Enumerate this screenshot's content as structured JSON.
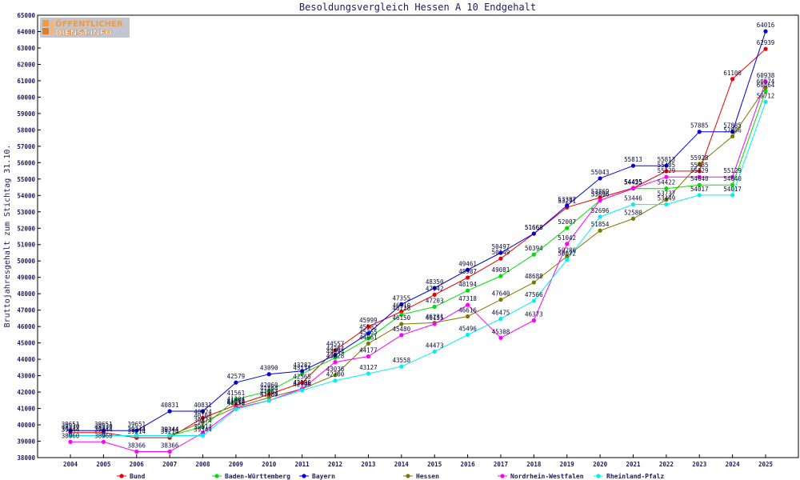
{
  "logo": {
    "line1": "ÖFFENTLICHER",
    "line2": "DIENST.INFO"
  },
  "chart_data": {
    "type": "line",
    "title": "Besoldungsvergleich Hessen A 10 Endgehalt",
    "xlabel": "",
    "ylabel": "Bruttojahresgehalt zum Stichtag 31.10.",
    "x": [
      2004,
      2005,
      2006,
      2007,
      2008,
      2009,
      2010,
      2011,
      2012,
      2013,
      2014,
      2015,
      2016,
      2017,
      2018,
      2019,
      2020,
      2021,
      2022,
      2023,
      2024,
      2025
    ],
    "ylim": [
      38000,
      65000
    ],
    "yticks": [
      38000,
      39000,
      40000,
      41000,
      42000,
      43000,
      44000,
      45000,
      46000,
      47000,
      48000,
      49000,
      50000,
      51000,
      52000,
      53000,
      54000,
      55000,
      56000,
      57000,
      58000,
      59000,
      60000,
      61000,
      62000,
      63000,
      64000,
      65000
    ],
    "grid": false,
    "legend": "bottom",
    "data_labels": true,
    "series": [
      {
        "name": "Bund",
        "color": "#ee0000",
        "values": [
          39530,
          39530,
          39214,
          39214,
          40424,
          41204,
          41863,
          42565,
          44557,
          45999,
          46910,
          47942,
          48987,
          50149,
          51668,
          53271,
          53869,
          54455,
          55485,
          55485,
          61106,
          62939
        ]
      },
      {
        "name": "Baden-Württemberg",
        "color": "#00e000",
        "values": [
          39344,
          39344,
          39344,
          39344,
          39874,
          41561,
          42060,
          43111,
          44094,
          45265,
          46728,
          47203,
          48194,
          49081,
          50394,
          52007,
          53696,
          54425,
          54422,
          54640,
          54640,
          60364
        ]
      },
      {
        "name": "Bayern",
        "color": "#0000e0",
        "values": [
          39651,
          39651,
          39651,
          40831,
          40831,
          42579,
          43090,
          43282,
          44264,
          45582,
          47355,
          48350,
          49461,
          50497,
          51668,
          53387,
          55043,
          55813,
          55813,
          57885,
          57885,
          64016
        ]
      },
      {
        "name": "Hessen",
        "color": "#7a7a00",
        "values": [
          39344,
          39344,
          39344,
          39344,
          40168,
          41068,
          41667,
          42196,
          43036,
          44961,
          46150,
          46231,
          46616,
          47640,
          48688,
          50286,
          51854,
          52580,
          53737,
          55928,
          57606,
          60574
        ]
      },
      {
        "name": "Nordrhein-Westfalen",
        "color": "#ff00ff",
        "values": [
          38960,
          38960,
          38366,
          38366,
          39514,
          41013,
          41487,
          42196,
          43828,
          44177,
          45480,
          46155,
          47318,
          45308,
          46373,
          51042,
          53696,
          54425,
          55129,
          55129,
          55129,
          60938
        ]
      },
      {
        "name": "Rheinland-Pfalz",
        "color": "#00f0f0",
        "values": [
          39344,
          39344,
          39344,
          39344,
          39344,
          40950,
          41480,
          42100,
          42700,
          43127,
          43558,
          44473,
          45496,
          46475,
          47566,
          50072,
          52696,
          53446,
          53449,
          54017,
          54017,
          59712
        ]
      }
    ]
  }
}
